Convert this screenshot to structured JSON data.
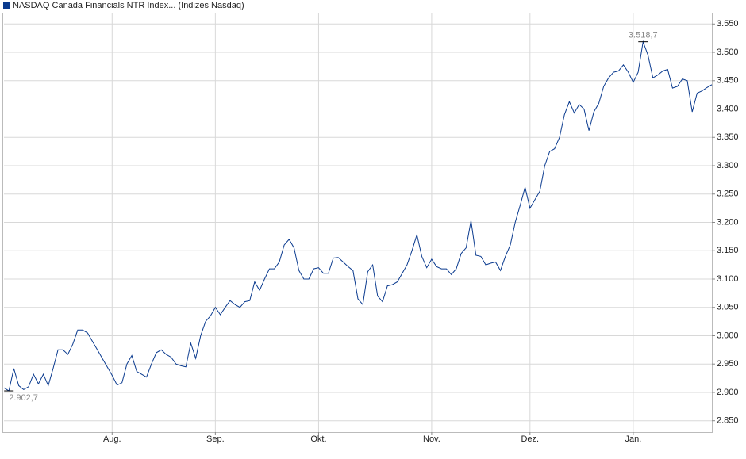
{
  "chart_data": {
    "type": "line",
    "series": [
      {
        "name": "NASDAQ Canada Financials NTR Index... (Indizes Nasdaq)",
        "color": "#0b3b8f",
        "values": [
          2908,
          2902.7,
          2942,
          2912,
          2905,
          2910,
          2932,
          2915,
          2932,
          2912,
          2942,
          2975,
          2975,
          2967,
          2985,
          3010,
          3010,
          3005,
          2990,
          2975,
          2960,
          2945,
          2930,
          2913,
          2917,
          2950,
          2965,
          2937,
          2932,
          2927,
          2950,
          2970,
          2975,
          2967,
          2962,
          2950,
          2947,
          2945,
          2987,
          2960,
          3000,
          3025,
          3035,
          3050,
          3037,
          3050,
          3062,
          3055,
          3050,
          3060,
          3062,
          3095,
          3080,
          3100,
          3118,
          3118,
          3130,
          3160,
          3170,
          3155,
          3115,
          3100,
          3100,
          3118,
          3120,
          3110,
          3110,
          3137,
          3138,
          3130,
          3122,
          3115,
          3065,
          3055,
          3113,
          3125,
          3070,
          3060,
          3088,
          3090,
          3095,
          3110,
          3125,
          3150,
          3178,
          3140,
          3120,
          3135,
          3122,
          3118,
          3118,
          3108,
          3118,
          3145,
          3155,
          3203,
          3142,
          3140,
          3125,
          3128,
          3130,
          3115,
          3140,
          3160,
          3200,
          3230,
          3262,
          3225,
          3240,
          3255,
          3300,
          3325,
          3330,
          3350,
          3390,
          3413,
          3393,
          3408,
          3400,
          3362,
          3395,
          3410,
          3440,
          3455,
          3465,
          3467,
          3478,
          3465,
          3447,
          3465,
          3518.7,
          3495,
          3455,
          3460,
          3467,
          3470,
          3437,
          3440,
          3453,
          3450,
          3395,
          3428,
          3432,
          3438,
          3443
        ]
      }
    ],
    "annotations": [
      {
        "label": "2.902,7",
        "value": 2902.7
      },
      {
        "label": "3.518,7",
        "value": 3518.7
      }
    ],
    "xlim": [
      0,
      144
    ],
    "xticks": [
      {
        "value": 22,
        "label": "Aug."
      },
      {
        "value": 43,
        "label": "Sep."
      },
      {
        "value": 64,
        "label": "Okt."
      },
      {
        "value": 87,
        "label": "Nov."
      },
      {
        "value": 107,
        "label": "Dez."
      },
      {
        "value": 128,
        "label": "Jan."
      }
    ],
    "ylim": [
      2830,
      3570
    ],
    "yticks": [
      {
        "value": 2850,
        "label": "2.850"
      },
      {
        "value": 2900,
        "label": "2.900"
      },
      {
        "value": 2950,
        "label": "2.950"
      },
      {
        "value": 3000,
        "label": "3.000"
      },
      {
        "value": 3050,
        "label": "3.050"
      },
      {
        "value": 3100,
        "label": "3.100"
      },
      {
        "value": 3150,
        "label": "3.150"
      },
      {
        "value": 3200,
        "label": "3.200"
      },
      {
        "value": 3250,
        "label": "3.250"
      },
      {
        "value": 3300,
        "label": "3.300"
      },
      {
        "value": 3350,
        "label": "3.350"
      },
      {
        "value": 3400,
        "label": "3.400"
      },
      {
        "value": 3450,
        "label": "3.450"
      },
      {
        "value": 3500,
        "label": "3.500"
      },
      {
        "value": 3550,
        "label": "3.550"
      }
    ],
    "grid": true
  }
}
